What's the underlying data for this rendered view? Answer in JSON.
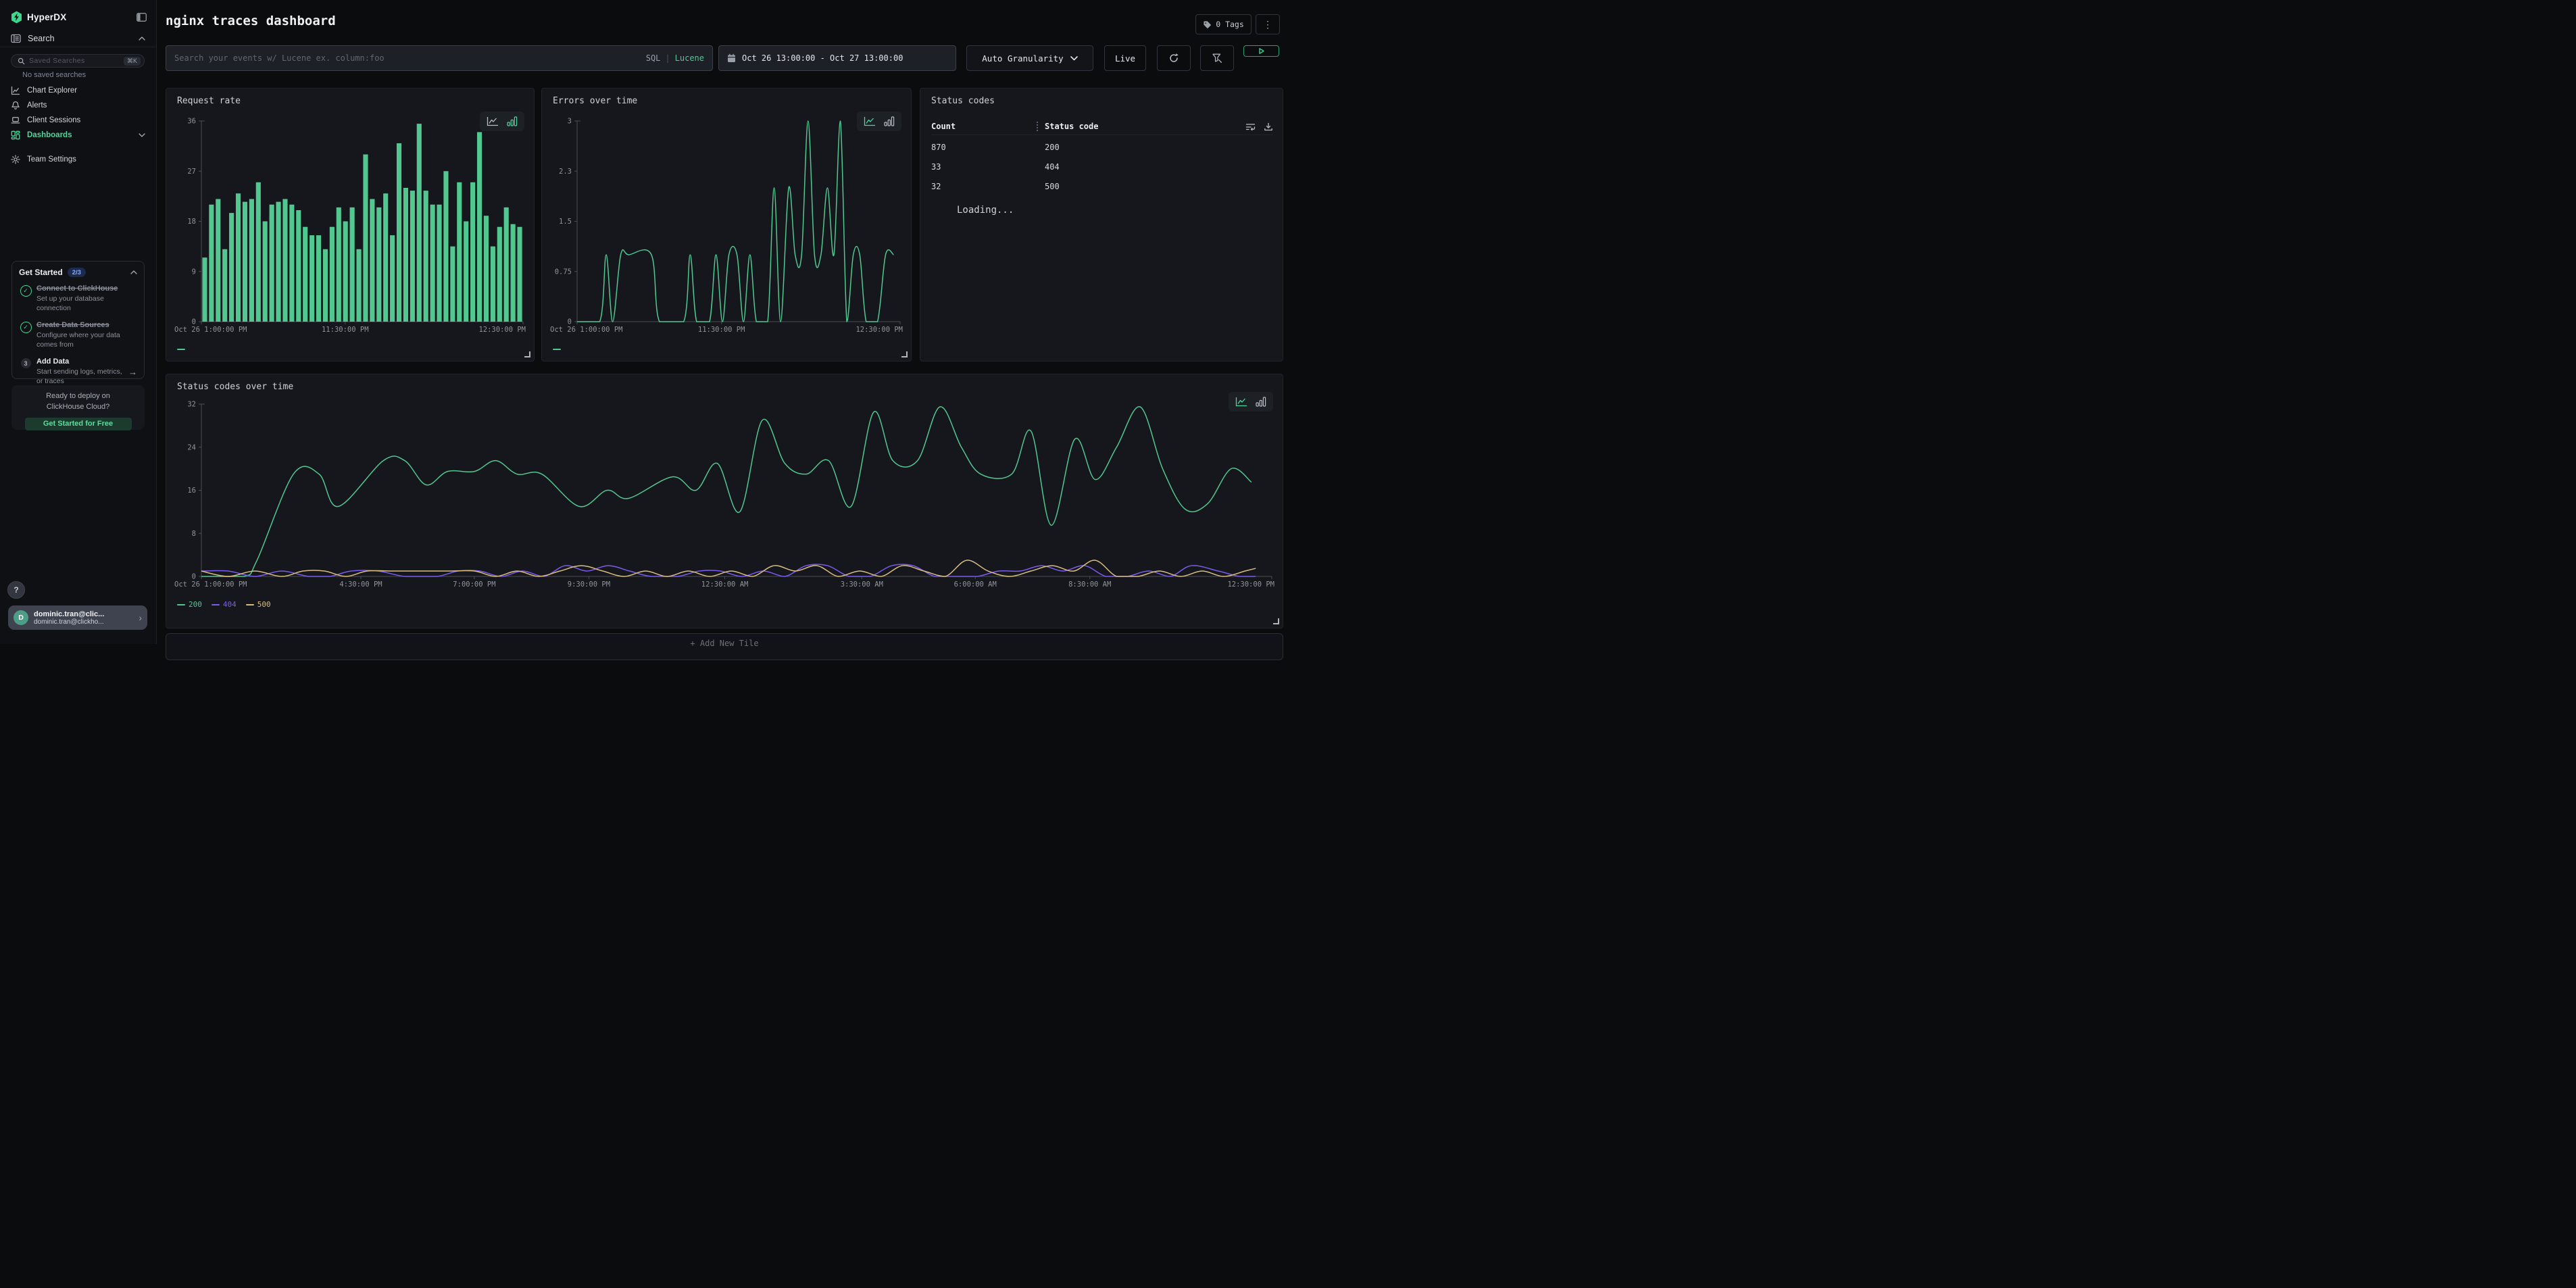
{
  "colors": {
    "green": "#52c78f",
    "purple": "#7c5bef",
    "tan": "#d9bd82",
    "accent": "#4fd69c"
  },
  "sidebar": {
    "logo": "HyperDX",
    "search_label": "Search",
    "saved_placeholder": "Saved Searches",
    "saved_shortcut": "⌘K",
    "no_saved": "No saved searches",
    "items": [
      {
        "label": "Chart Explorer"
      },
      {
        "label": "Alerts"
      },
      {
        "label": "Client Sessions"
      },
      {
        "label": "Dashboards"
      },
      {
        "label": "Team Settings"
      }
    ],
    "get_started": {
      "title": "Get Started",
      "badge": "2/3",
      "steps": [
        {
          "title": "Connect to ClickHouse",
          "desc": "Set up your database connection",
          "done": true
        },
        {
          "title": "Create Data Sources",
          "desc": "Configure where your data comes from",
          "done": true
        },
        {
          "title": "Add Data",
          "desc": "Start sending logs, metrics, or traces",
          "done": false,
          "number": "3",
          "arrow": "→"
        }
      ]
    },
    "cloud": {
      "line1": "Ready to deploy on",
      "line2": "ClickHouse Cloud?",
      "cta": "Get Started for Free"
    },
    "help": "?",
    "user": {
      "initial": "D",
      "name": "dominic.tran@clic...",
      "email": "dominic.tran@clickho...",
      "chevron": "›"
    }
  },
  "header": {
    "title": "nginx traces dashboard",
    "tags_label": "0 Tags",
    "kebab": "⋮",
    "search_placeholder": "Search your events w/ Lucene ex. column:foo",
    "sql": "SQL",
    "divider": "|",
    "lucene": "Lucene",
    "date_range": "Oct 26 13:00:00 - Oct 27 13:00:00",
    "granularity": "Auto Granularity",
    "live": "Live"
  },
  "add_tile_label": "+ Add New Tile",
  "chart_data": [
    {
      "type": "bar",
      "title": "Request rate",
      "active_view": "bar",
      "ylim": [
        0,
        36
      ],
      "yticks": [
        {
          "v": 0,
          "l": "0"
        },
        {
          "v": 9,
          "l": "9"
        },
        {
          "v": 18,
          "l": "18"
        },
        {
          "v": 27,
          "l": "27"
        },
        {
          "v": 36,
          "l": "36"
        }
      ],
      "xticks": [
        {
          "pos": 0,
          "label": "Oct 26 1:00:00 PM",
          "align": "start"
        },
        {
          "pos": 0.447,
          "label": "11:30:00 PM",
          "align": "middle"
        },
        {
          "pos": 1,
          "label": "12:30:00 PM",
          "align": "end"
        }
      ],
      "color": "#52c78f",
      "values": [
        11.5,
        21,
        22,
        13,
        19.5,
        23,
        21.5,
        22,
        25,
        18,
        21,
        21.5,
        22,
        21,
        20,
        17,
        15.5,
        15.5,
        13,
        17,
        20.5,
        18,
        20.5,
        13,
        30,
        22,
        20.5,
        23,
        15.5,
        32,
        24,
        23.5,
        35.5,
        23.5,
        21,
        21,
        27,
        13.5,
        25,
        18,
        25,
        34,
        19,
        13.5,
        17,
        20.5,
        17.5,
        17
      ],
      "legend": [
        {
          "label": "",
          "color": "#52c78f"
        }
      ]
    },
    {
      "type": "line",
      "title": "Errors over time",
      "active_view": "line",
      "ylim": [
        0,
        3
      ],
      "yticks": [
        {
          "v": 0,
          "l": "0"
        },
        {
          "v": 0.75,
          "l": "0.75"
        },
        {
          "v": 1.5,
          "l": "1.5"
        },
        {
          "v": 2.25,
          "l": "2.3"
        },
        {
          "v": 3,
          "l": "3"
        }
      ],
      "xticks": [
        {
          "pos": 0,
          "label": "Oct 26 1:00:00 PM",
          "align": "start"
        },
        {
          "pos": 0.447,
          "label": "11:30:00 PM",
          "align": "middle"
        },
        {
          "pos": 1,
          "label": "12:30:00 PM",
          "align": "end"
        }
      ],
      "series": [
        {
          "name": "",
          "color": "#52c78f",
          "points": [
            [
              0,
              0
            ],
            [
              7,
              0
            ],
            [
              9,
              1
            ],
            [
              11,
              0
            ],
            [
              13.5,
              1
            ],
            [
              16,
              1
            ],
            [
              23,
              1
            ],
            [
              25.5,
              0
            ],
            [
              33,
              0
            ],
            [
              35,
              1
            ],
            [
              37,
              0
            ],
            [
              41,
              0
            ],
            [
              43,
              1
            ],
            [
              45,
              0
            ],
            [
              47,
              1
            ],
            [
              49.5,
              1
            ],
            [
              51.5,
              0
            ],
            [
              53.5,
              1
            ],
            [
              55.5,
              0
            ],
            [
              59,
              0
            ],
            [
              61,
              2
            ],
            [
              63,
              0
            ],
            [
              65.5,
              2
            ],
            [
              67.5,
              1
            ],
            [
              69.5,
              1
            ],
            [
              71.5,
              3
            ],
            [
              73.5,
              1
            ],
            [
              75.5,
              1
            ],
            [
              77.5,
              2
            ],
            [
              79.5,
              1
            ],
            [
              81.5,
              3
            ],
            [
              83.5,
              0
            ],
            [
              85.5,
              1
            ],
            [
              87.5,
              1
            ],
            [
              89.5,
              0
            ],
            [
              93,
              0
            ],
            [
              95.5,
              1
            ],
            [
              98,
              1
            ]
          ]
        }
      ],
      "legend": [
        {
          "label": "",
          "color": "#52c78f"
        }
      ]
    },
    {
      "type": "table",
      "title": "Status codes",
      "columns": [
        "Count",
        "Status code"
      ],
      "rows": [
        [
          "870",
          "200"
        ],
        [
          "33",
          "404"
        ],
        [
          "32",
          "500"
        ]
      ],
      "status_text": "Loading..."
    },
    {
      "type": "line",
      "title": "Status codes over time",
      "active_view": "line",
      "ylim": [
        0,
        32
      ],
      "yticks": [
        {
          "v": 0,
          "l": "0"
        },
        {
          "v": 8,
          "l": "8"
        },
        {
          "v": 16,
          "l": "16"
        },
        {
          "v": 24,
          "l": "24"
        },
        {
          "v": 32,
          "l": "32"
        }
      ],
      "xticks": [
        {
          "pos": 0,
          "label": "Oct 26 1:00:00 PM",
          "align": "start"
        },
        {
          "pos": 0.149,
          "label": "4:30:00 PM",
          "align": "middle"
        },
        {
          "pos": 0.255,
          "label": "7:00:00 PM",
          "align": "middle"
        },
        {
          "pos": 0.362,
          "label": "9:30:00 PM",
          "align": "middle"
        },
        {
          "pos": 0.489,
          "label": "12:30:00 AM",
          "align": "middle"
        },
        {
          "pos": 0.617,
          "label": "3:30:00 AM",
          "align": "middle"
        },
        {
          "pos": 0.723,
          "label": "6:00:00 AM",
          "align": "middle"
        },
        {
          "pos": 0.83,
          "label": "8:30:00 AM",
          "align": "middle"
        },
        {
          "pos": 1,
          "label": "12:30:00 PM",
          "align": "end"
        }
      ],
      "series": [
        {
          "name": "200",
          "color": "#52c78f",
          "points": [
            [
              0,
              0
            ],
            [
              4,
              0
            ],
            [
              5.2,
              3
            ],
            [
              8.6,
              19
            ],
            [
              11,
              19
            ],
            [
              12.8,
              13
            ],
            [
              17,
              21.5
            ],
            [
              19,
              21.5
            ],
            [
              21,
              17
            ],
            [
              23,
              19.5
            ],
            [
              25.5,
              19.5
            ],
            [
              27.5,
              21.5
            ],
            [
              29.5,
              19
            ],
            [
              31.8,
              19
            ],
            [
              35.3,
              13
            ],
            [
              37.9,
              16
            ],
            [
              39.9,
              14.5
            ],
            [
              44,
              18.5
            ],
            [
              46.2,
              16
            ],
            [
              48.2,
              21
            ],
            [
              50.3,
              12
            ],
            [
              52.4,
              29
            ],
            [
              54.5,
              21
            ],
            [
              56.5,
              19
            ],
            [
              58.6,
              21.5
            ],
            [
              60.7,
              13
            ],
            [
              62.8,
              30.5
            ],
            [
              64.6,
              21.5
            ],
            [
              66.9,
              21.5
            ],
            [
              69,
              31.5
            ],
            [
              71,
              24
            ],
            [
              72.8,
              19
            ],
            [
              75.7,
              19
            ],
            [
              77.5,
              27
            ],
            [
              79.4,
              9.5
            ],
            [
              81.6,
              25.5
            ],
            [
              83.5,
              18
            ],
            [
              85.5,
              24
            ],
            [
              87.7,
              31.5
            ],
            [
              89.8,
              20
            ],
            [
              91.9,
              12.5
            ],
            [
              94,
              13.5
            ],
            [
              96.2,
              20
            ],
            [
              98.1,
              17.5
            ]
          ]
        },
        {
          "name": "404",
          "color": "#7c5bef",
          "points": [
            [
              0,
              1
            ],
            [
              2.5,
              1
            ],
            [
              5,
              0
            ],
            [
              7.5,
              1
            ],
            [
              10,
              0
            ],
            [
              12,
              0
            ],
            [
              14,
              1
            ],
            [
              16.5,
              1
            ],
            [
              19,
              0
            ],
            [
              22,
              0
            ],
            [
              24,
              1
            ],
            [
              26,
              1
            ],
            [
              28,
              0
            ],
            [
              30,
              1
            ],
            [
              32,
              0
            ],
            [
              34,
              2
            ],
            [
              36,
              1
            ],
            [
              38,
              2
            ],
            [
              40,
              1
            ],
            [
              42,
              0
            ],
            [
              44.5,
              0
            ],
            [
              46.5,
              1
            ],
            [
              48.5,
              1
            ],
            [
              50.5,
              0
            ],
            [
              52.5,
              1
            ],
            [
              54.5,
              0
            ],
            [
              56.5,
              2
            ],
            [
              58.5,
              2
            ],
            [
              60.5,
              0
            ],
            [
              62.5,
              0
            ],
            [
              64.5,
              2
            ],
            [
              66.5,
              2
            ],
            [
              68.5,
              0
            ],
            [
              70.5,
              0
            ],
            [
              72.5,
              0
            ],
            [
              74.5,
              1
            ],
            [
              76.5,
              1
            ],
            [
              78.5,
              2
            ],
            [
              80.5,
              1
            ],
            [
              82.5,
              2
            ],
            [
              84.5,
              0
            ],
            [
              86.5,
              0
            ],
            [
              88.5,
              1
            ],
            [
              90.5,
              0
            ],
            [
              92.5,
              2
            ],
            [
              95,
              1
            ],
            [
              97,
              0
            ],
            [
              98.5,
              0
            ]
          ]
        },
        {
          "name": "500",
          "color": "#d9bd82",
          "points": [
            [
              0,
              1
            ],
            [
              2.5,
              0
            ],
            [
              5,
              1
            ],
            [
              7.5,
              0
            ],
            [
              9.5,
              1
            ],
            [
              11.5,
              1
            ],
            [
              13.5,
              0
            ],
            [
              15.5,
              1
            ],
            [
              18,
              1
            ],
            [
              20.5,
              1
            ],
            [
              23,
              1
            ],
            [
              25.5,
              1
            ],
            [
              27.5,
              0
            ],
            [
              29.5,
              1
            ],
            [
              31.5,
              0
            ],
            [
              33.5,
              1
            ],
            [
              35.5,
              2
            ],
            [
              37.5,
              1
            ],
            [
              39.5,
              0
            ],
            [
              41.5,
              1
            ],
            [
              43.5,
              0
            ],
            [
              45.5,
              1
            ],
            [
              47.5,
              0
            ],
            [
              49.5,
              1
            ],
            [
              51.5,
              0
            ],
            [
              53.5,
              2
            ],
            [
              55.5,
              1
            ],
            [
              57.5,
              2
            ],
            [
              59.5,
              0
            ],
            [
              61.5,
              1
            ],
            [
              63.5,
              0
            ],
            [
              65.5,
              2
            ],
            [
              67.5,
              1
            ],
            [
              69.5,
              0
            ],
            [
              71.5,
              3
            ],
            [
              73.5,
              1
            ],
            [
              75.5,
              0
            ],
            [
              77.5,
              1
            ],
            [
              79.5,
              2
            ],
            [
              81.5,
              1
            ],
            [
              83.5,
              3
            ],
            [
              85.5,
              0
            ],
            [
              87.5,
              0
            ],
            [
              89.5,
              1
            ],
            [
              91.5,
              0
            ],
            [
              93.5,
              1
            ],
            [
              95.5,
              0
            ],
            [
              97.5,
              1
            ],
            [
              98.5,
              1.5
            ]
          ]
        }
      ],
      "legend": [
        {
          "label": "200",
          "color": "#52c78f"
        },
        {
          "label": "404",
          "color": "#7c5bef"
        },
        {
          "label": "500",
          "color": "#d9bd82"
        }
      ]
    }
  ]
}
